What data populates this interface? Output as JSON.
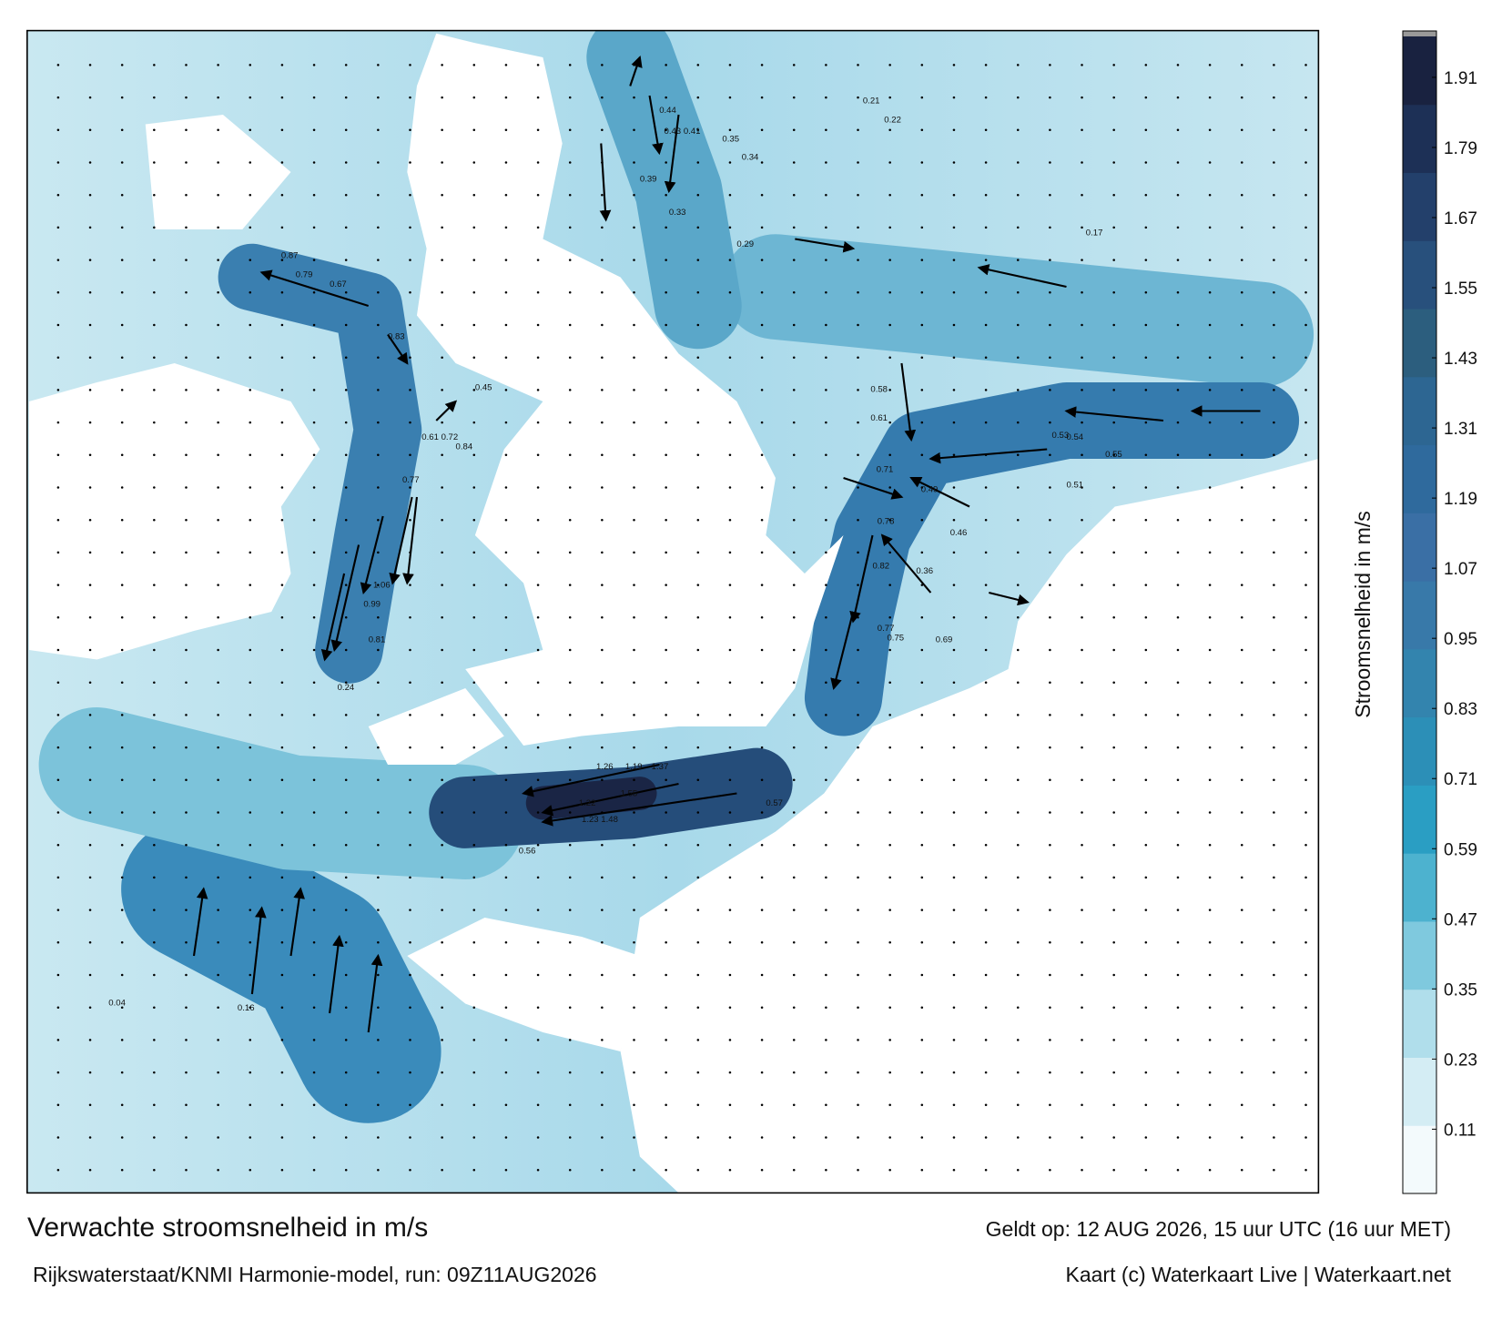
{
  "title": "Verwachte stroomsnelheid in m/s",
  "subtitle": "Rijkswaterstaat/KNMI Harmonie-model, run: 09Z11AUG2026",
  "valid": "Geldt op: 12 AUG 2026, 15 uur UTC (16 uur MET)",
  "credit": "Kaart (c) Waterkaart Live | Waterkaart.net",
  "colorbar": {
    "label": "Stroomsnelheid in m/s",
    "lim": [
      0,
      1.98
    ],
    "ticks": [
      0.11,
      0.23,
      0.35,
      0.47,
      0.59,
      0.71,
      0.83,
      0.95,
      1.07,
      1.19,
      1.31,
      1.43,
      1.55,
      1.67,
      1.79,
      1.91
    ],
    "colors": [
      "#f3fafc",
      "#d4edf4",
      "#b0deeb",
      "#7fc9de",
      "#4db2cf",
      "#2a9ec3",
      "#2c8fb7",
      "#3384ae",
      "#3879a9",
      "#3a6fa5",
      "#2f6a9d",
      "#2d6692",
      "#2c5e7e",
      "#28507c",
      "#23406b",
      "#1d3056",
      "#192240"
    ]
  },
  "map_labels": [
    "0.44",
    "0.43",
    "0.41",
    "0.35",
    "0.34",
    "0.39",
    "0.33",
    "0.29",
    "0.21",
    "0.22",
    "0.17",
    "0.87",
    "0.79",
    "0.67",
    "0.83",
    "0.61",
    "0.72",
    "0.84",
    "0.77",
    "0.99",
    "1.06",
    "0.81",
    "0.58",
    "0.61",
    "0.71",
    "0.78",
    "0.82",
    "0.77",
    "0.75",
    "0.69",
    "1.26",
    "1.19",
    "1.37",
    "1.22",
    "1.55",
    "1.23",
    "1.48",
    "0.56",
    "0.57",
    "0.46",
    "0.49",
    "0.54",
    "0.55",
    "0.53",
    "0.51",
    "0.36",
    "0.45",
    "0.24",
    "0.16",
    "0.04"
  ]
}
